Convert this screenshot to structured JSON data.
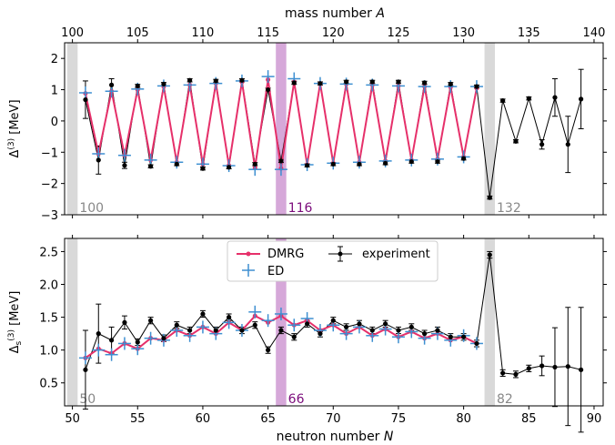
{
  "figure": {
    "top_xlabel": "mass number",
    "top_xlabel_var": "A",
    "bottom_xlabel": "neutron number",
    "bottom_xlabel_var": "N",
    "legend": {
      "dmrg": "DMRG",
      "ed": "ED",
      "experiment": "experiment"
    }
  },
  "colors": {
    "dmrg": "#e6306a",
    "ed": "#3d8fd1",
    "experiment": "#000000",
    "band_gray": "#d9d9d9",
    "band_purple": "#d6a8d9",
    "label_gray": "#888888",
    "label_purple": "#7b0c7b"
  },
  "chart_data": [
    {
      "type": "line",
      "panel": "top",
      "ylabel": "Δ^(3) [MeV]",
      "x_range": [
        49.4,
        90.7
      ],
      "ylim": [
        -3,
        2.5
      ],
      "yticks": [
        -3,
        -2,
        -1,
        0,
        1,
        2
      ],
      "xticks": [
        50,
        55,
        60,
        65,
        70,
        75,
        80,
        85,
        90
      ],
      "top_axis": {
        "label": "mass number A",
        "ticks": [
          100,
          105,
          110,
          115,
          120,
          125,
          130,
          135,
          140
        ],
        "offset": 50
      },
      "shaded_bands": [
        {
          "x": 50,
          "label": "100",
          "color": "gray"
        },
        {
          "x": 66,
          "label": "116",
          "color": "purple"
        },
        {
          "x": 82,
          "label": "132",
          "color": "gray"
        }
      ],
      "series": [
        {
          "name": "DMRG",
          "x": [
            51,
            52,
            53,
            54,
            55,
            56,
            57,
            58,
            59,
            60,
            61,
            62,
            63,
            64,
            65,
            66,
            67,
            68,
            69,
            70,
            71,
            72,
            73,
            74,
            75,
            76,
            77,
            78,
            79,
            80,
            81
          ],
          "values": [
            0.88,
            -1.05,
            0.95,
            -1.1,
            1.0,
            -1.25,
            1.1,
            -1.32,
            1.15,
            -1.38,
            1.2,
            -1.42,
            1.25,
            -1.5,
            1.32,
            -1.52,
            1.25,
            -1.4,
            1.2,
            -1.35,
            1.18,
            -1.32,
            1.15,
            -1.28,
            1.12,
            -1.25,
            1.1,
            -1.22,
            1.08,
            -1.15,
            1.05
          ]
        },
        {
          "name": "ED",
          "x": [
            51,
            52,
            53,
            54,
            55,
            56,
            57,
            58,
            59,
            60,
            61,
            62,
            63,
            64,
            65,
            66,
            67,
            68,
            69,
            70,
            71,
            72,
            73,
            74,
            75,
            76,
            77,
            78,
            79,
            80,
            81
          ],
          "values": [
            0.9,
            -1.05,
            0.95,
            -1.1,
            1.02,
            -1.25,
            1.12,
            -1.32,
            1.15,
            -1.38,
            1.2,
            -1.43,
            1.28,
            -1.55,
            1.42,
            -1.55,
            1.35,
            -1.4,
            1.2,
            -1.35,
            1.18,
            -1.32,
            1.15,
            -1.28,
            1.12,
            -1.25,
            1.1,
            -1.22,
            1.1,
            -1.15,
            1.1
          ]
        },
        {
          "name": "experiment",
          "x": [
            51,
            52,
            53,
            54,
            55,
            56,
            57,
            58,
            59,
            60,
            61,
            62,
            63,
            64,
            65,
            66,
            67,
            68,
            69,
            70,
            71,
            72,
            73,
            74,
            75,
            76,
            77,
            78,
            79,
            80,
            81,
            82,
            83,
            84,
            85,
            86,
            87,
            88,
            89
          ],
          "values": [
            0.68,
            -1.25,
            1.15,
            -1.42,
            1.12,
            -1.45,
            1.18,
            -1.38,
            1.3,
            -1.52,
            1.28,
            -1.48,
            1.3,
            -1.38,
            1.0,
            -1.28,
            1.22,
            -1.42,
            1.2,
            -1.38,
            1.25,
            -1.38,
            1.25,
            -1.35,
            1.25,
            -1.3,
            1.22,
            -1.3,
            1.18,
            -1.2,
            1.1,
            -2.45,
            0.65,
            -0.65,
            0.72,
            -0.75,
            0.75,
            -0.75,
            0.7
          ],
          "errors": [
            0.6,
            0.45,
            0.2,
            0.1,
            0.05,
            0.05,
            0.05,
            0.05,
            0.05,
            0.05,
            0.05,
            0.05,
            0.05,
            0.05,
            0.05,
            0.05,
            0.05,
            0.05,
            0.05,
            0.05,
            0.05,
            0.05,
            0.05,
            0.05,
            0.05,
            0.05,
            0.05,
            0.05,
            0.05,
            0.05,
            0.05,
            0.05,
            0.05,
            0.05,
            0.05,
            0.15,
            0.6,
            0.9,
            0.95
          ]
        }
      ]
    },
    {
      "type": "line",
      "panel": "bottom",
      "ylabel": "Δ_s^(3) [MeV]",
      "x_range": [
        49.4,
        90.7
      ],
      "ylim": [
        0.15,
        2.7
      ],
      "yticks": [
        0.5,
        1.0,
        1.5,
        2.0,
        2.5
      ],
      "xticks": [
        50,
        55,
        60,
        65,
        70,
        75,
        80,
        85,
        90
      ],
      "shaded_bands": [
        {
          "x": 50,
          "label": "50",
          "color": "gray"
        },
        {
          "x": 66,
          "label": "66",
          "color": "purple"
        },
        {
          "x": 82,
          "label": "82",
          "color": "gray"
        }
      ],
      "series": [
        {
          "name": "DMRG",
          "x": [
            51,
            52,
            53,
            54,
            55,
            56,
            57,
            58,
            59,
            60,
            61,
            62,
            63,
            64,
            65,
            66,
            67,
            68,
            69,
            70,
            71,
            72,
            73,
            74,
            75,
            76,
            77,
            78,
            79,
            80,
            81
          ],
          "values": [
            0.88,
            1.02,
            0.95,
            1.1,
            1.02,
            1.18,
            1.15,
            1.3,
            1.22,
            1.35,
            1.25,
            1.42,
            1.3,
            1.52,
            1.42,
            1.52,
            1.38,
            1.45,
            1.3,
            1.38,
            1.25,
            1.35,
            1.22,
            1.32,
            1.2,
            1.28,
            1.18,
            1.25,
            1.15,
            1.2,
            1.1
          ]
        },
        {
          "name": "ED",
          "x": [
            51,
            52,
            53,
            54,
            55,
            56,
            57,
            58,
            59,
            60,
            61,
            62,
            63,
            64,
            65,
            66,
            67,
            68,
            69,
            70,
            71,
            72,
            73,
            74,
            75,
            76,
            77,
            78,
            79,
            80,
            81
          ],
          "values": [
            0.88,
            1.0,
            0.93,
            1.1,
            1.02,
            1.18,
            1.15,
            1.3,
            1.22,
            1.35,
            1.25,
            1.42,
            1.3,
            1.58,
            1.45,
            1.55,
            1.38,
            1.48,
            1.3,
            1.38,
            1.25,
            1.35,
            1.22,
            1.32,
            1.2,
            1.28,
            1.18,
            1.25,
            1.15,
            1.22,
            1.1
          ]
        },
        {
          "name": "experiment",
          "x": [
            51,
            52,
            53,
            54,
            55,
            56,
            57,
            58,
            59,
            60,
            61,
            62,
            63,
            64,
            65,
            66,
            67,
            68,
            69,
            70,
            71,
            72,
            73,
            74,
            75,
            76,
            77,
            78,
            79,
            80,
            81,
            82,
            83,
            84,
            85,
            86,
            87,
            88,
            89
          ],
          "values": [
            0.7,
            1.25,
            1.15,
            1.42,
            1.12,
            1.45,
            1.18,
            1.38,
            1.3,
            1.55,
            1.3,
            1.5,
            1.3,
            1.38,
            1.0,
            1.3,
            1.2,
            1.4,
            1.25,
            1.45,
            1.35,
            1.4,
            1.3,
            1.4,
            1.3,
            1.35,
            1.25,
            1.3,
            1.2,
            1.2,
            1.1,
            2.45,
            0.65,
            0.63,
            0.72,
            0.76,
            0.74,
            0.75,
            0.7
          ],
          "errors": [
            0.6,
            0.45,
            0.2,
            0.1,
            0.05,
            0.05,
            0.05,
            0.05,
            0.05,
            0.05,
            0.05,
            0.05,
            0.05,
            0.05,
            0.05,
            0.05,
            0.05,
            0.05,
            0.05,
            0.05,
            0.05,
            0.05,
            0.05,
            0.05,
            0.05,
            0.05,
            0.05,
            0.05,
            0.05,
            0.05,
            0.05,
            0.05,
            0.05,
            0.05,
            0.05,
            0.15,
            0.6,
            0.9,
            0.95
          ]
        }
      ]
    }
  ]
}
